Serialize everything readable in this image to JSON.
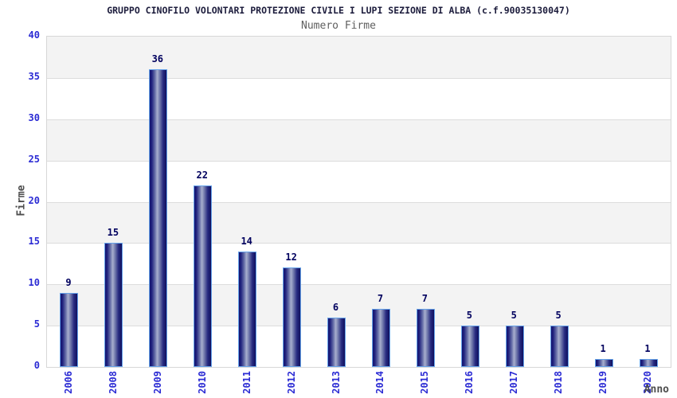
{
  "chart_data": {
    "type": "bar",
    "title": "GRUPPO CINOFILO VOLONTARI PROTEZIONE CIVILE I LUPI SEZIONE DI ALBA (c.f.90035130047)",
    "subtitle": "Numero Firme",
    "xlabel": "Anno",
    "ylabel": "Firme",
    "categories": [
      "2006",
      "2008",
      "2009",
      "2010",
      "2011",
      "2012",
      "2013",
      "2014",
      "2015",
      "2016",
      "2017",
      "2018",
      "2019",
      "2020"
    ],
    "values": [
      9,
      15,
      36,
      22,
      14,
      12,
      6,
      7,
      7,
      5,
      5,
      5,
      1,
      1
    ],
    "ylim": [
      0,
      40
    ],
    "yticks": [
      0,
      5,
      10,
      15,
      20,
      25,
      30,
      35,
      40
    ],
    "grid": true,
    "legend": "none",
    "bar_value_labels": true,
    "colors": {
      "title_color": "#1c1c3c",
      "subtitle_color": "#5f5f5f",
      "axis_label_color": "#4d4d4d",
      "tick_label": "#2b2bd4",
      "value_label": "#00005e",
      "bar_edge": "#66a3ea",
      "bar_dark": "#141470",
      "bar_light": "#a8afce",
      "band_gray": "#f3f3f3",
      "band_white": "#ffffff",
      "gridline": "#dcdcdc",
      "plot_border": "#d7d7d7"
    }
  }
}
